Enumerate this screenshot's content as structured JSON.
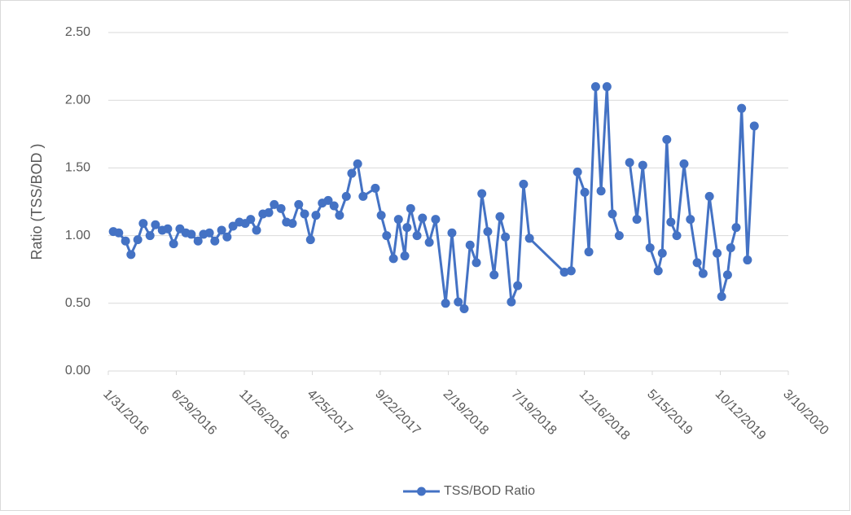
{
  "chart_data": {
    "type": "line",
    "y_label": "Ratio (TSS/BOD )",
    "x": [
      "2/11/2016",
      "2/23/2016",
      "3/9/2016",
      "3/21/2016",
      "4/5/2016",
      "4/17/2016",
      "5/2/2016",
      "5/14/2016",
      "5/29/2016",
      "6/10/2016",
      "6/23/2016",
      "7/7/2016",
      "7/20/2016",
      "8/1/2016",
      "8/16/2016",
      "8/28/2016",
      "9/10/2016",
      "9/22/2016",
      "10/7/2016",
      "10/19/2016",
      "11/1/2016",
      "11/15/2016",
      "11/28/2016",
      "12/10/2016",
      "12/23/2016",
      "1/6/2017",
      "1/19/2017",
      "1/31/2017",
      "2/15/2017",
      "2/27/2017",
      "3/12/2017",
      "3/26/2017",
      "4/8/2017",
      "4/21/2017",
      "5/3/2017",
      "5/17/2017",
      "5/30/2017",
      "6/12/2017",
      "6/24/2017",
      "7/9/2017",
      "7/21/2017",
      "8/3/2017",
      "8/15/2017",
      "9/11/2017",
      "9/24/2017",
      "10/6/2017",
      "10/21/2017",
      "11/1/2017",
      "11/15/2017",
      "11/20/2017",
      "11/28/2017",
      "12/12/2017",
      "12/24/2017",
      "1/8/2018",
      "1/22/2018",
      "2/13/2018",
      "2/27/2018",
      "3/13/2018",
      "3/26/2018",
      "4/8/2018",
      "4/22/2018",
      "5/4/2018",
      "5/17/2018",
      "5/31/2018",
      "6/13/2018",
      "6/25/2018",
      "7/8/2018",
      "7/22/2018",
      "8/4/2018",
      "8/17/2018",
      "11/2/2018",
      "11/17/2018",
      "12/1/2018",
      "12/17/2018",
      "12/26/2018",
      "1/10/2019",
      "1/22/2019",
      "2/4/2019",
      "2/16/2019",
      "3/3/2019",
      "3/13/2019",
      "3/26/2019",
      "4/11/2019",
      "4/24/2019",
      "5/10/2019",
      "5/28/2019",
      "6/6/2019",
      "6/16/2019",
      "6/25/2019",
      "7/8/2019",
      "7/24/2019",
      "8/7/2019",
      "8/22/2019",
      "9/4/2019",
      "9/18/2019",
      "10/5/2019",
      "10/15/2019",
      "10/28/2019",
      "11/4/2019",
      "11/16/2019",
      "11/28/2019",
      "12/11/2019",
      "12/26/2019"
    ],
    "series": [
      {
        "name": "TSS/BOD Ratio",
        "color": "#4472c4",
        "values": [
          1.03,
          1.02,
          0.96,
          0.86,
          0.97,
          1.09,
          1.0,
          1.08,
          1.04,
          1.05,
          0.94,
          1.05,
          1.02,
          1.01,
          0.96,
          1.01,
          1.02,
          0.96,
          1.04,
          0.99,
          1.07,
          1.1,
          1.09,
          1.12,
          1.04,
          1.16,
          1.17,
          1.23,
          1.2,
          1.1,
          1.09,
          1.23,
          1.16,
          0.97,
          1.15,
          1.24,
          1.26,
          1.22,
          1.15,
          1.29,
          1.46,
          1.53,
          1.29,
          1.35,
          1.15,
          1.0,
          0.83,
          1.12,
          0.85,
          1.06,
          1.2,
          1.0,
          1.13,
          0.95,
          1.12,
          0.5,
          1.02,
          0.51,
          0.46,
          0.93,
          0.8,
          1.31,
          1.03,
          0.71,
          1.14,
          0.99,
          0.51,
          0.63,
          1.38,
          0.98,
          0.73,
          0.74,
          1.47,
          1.32,
          0.88,
          2.1,
          1.33,
          2.1,
          1.16,
          1.0,
          null,
          1.54,
          1.12,
          1.52,
          0.91,
          0.74,
          0.87,
          1.71,
          1.1,
          1.0,
          1.53,
          1.12,
          0.8,
          0.72,
          1.29,
          0.87,
          0.55,
          0.71,
          0.91,
          1.06,
          1.94,
          0.82,
          1.81
        ]
      }
    ],
    "xlim": [
      "1/31/2016",
      "3/10/2020"
    ],
    "xticks": [
      "1/31/2016",
      "6/29/2016",
      "11/26/2016",
      "4/25/2017",
      "9/22/2017",
      "2/19/2018",
      "7/19/2018",
      "12/16/2018",
      "5/15/2019",
      "10/12/2019",
      "3/10/2020"
    ],
    "ylim": [
      0,
      2.5
    ],
    "yticks": [
      {
        "value": 0,
        "label": "0.00"
      },
      {
        "value": 0.5,
        "label": "0.50"
      },
      {
        "value": 1,
        "label": "1.00"
      },
      {
        "value": 1.5,
        "label": "1.50"
      },
      {
        "value": 2,
        "label": "2.00"
      },
      {
        "value": 2.5,
        "label": "2.50"
      }
    ],
    "grid": true,
    "legend": "bottom"
  }
}
